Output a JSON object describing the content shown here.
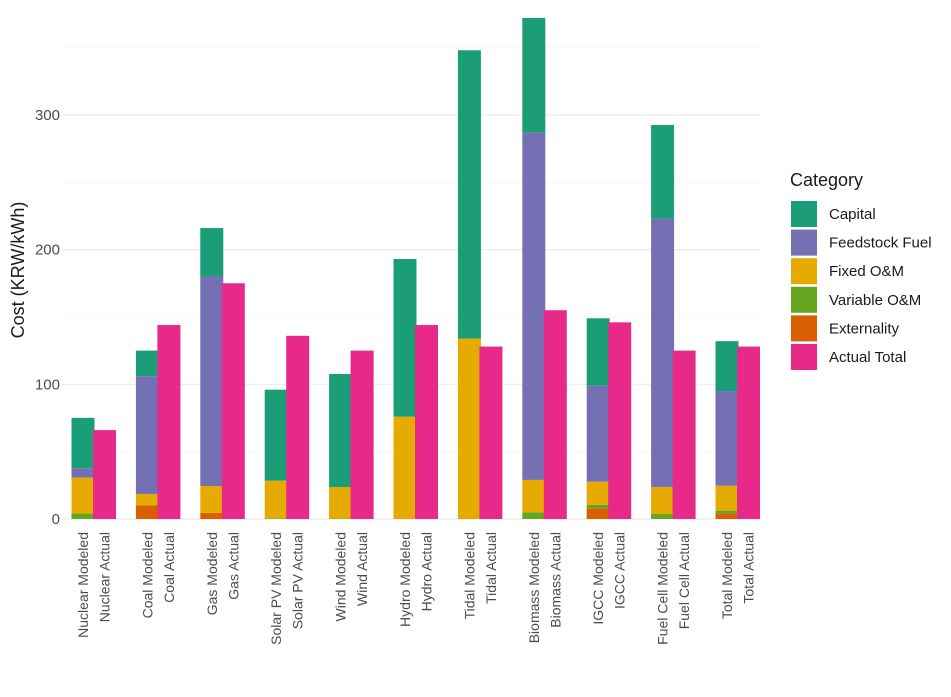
{
  "chart_data": {
    "type": "bar",
    "stacked": true,
    "title": "",
    "xlabel": "",
    "ylabel": "Cost (KRW/kWh)",
    "ylim": [
      0,
      375
    ],
    "yticks": [
      0,
      100,
      200,
      300
    ],
    "grid": true,
    "legend_title": "Category",
    "legend_position": "right",
    "categories": [
      "Nuclear Modeled",
      "Nuclear Actual",
      "Coal Modeled",
      "Coal Actual",
      "Gas Modeled",
      "Gas Actual",
      "Solar PV Modeled",
      "Solar PV Actual",
      "Wind Modeled",
      "Wind Actual",
      "Hydro Modeled",
      "Hydro Actual",
      "Tidal Modeled",
      "Tidal Actual",
      "Biomass Modeled",
      "Biomass Actual",
      "IGCC Modeled",
      "IGCC Actual",
      "Fuel Cell Modeled",
      "Fuel Cell Actual",
      "Total Modeled",
      "Total Actual"
    ],
    "series": [
      {
        "name": "Externality",
        "color": "#d95f02",
        "values": [
          0,
          0,
          10,
          0,
          4.5,
          0,
          0,
          0,
          0,
          0,
          0,
          0,
          0,
          0,
          0,
          0,
          8,
          0,
          0,
          0,
          4,
          0
        ]
      },
      {
        "name": "Variable O&M",
        "color": "#66a61e",
        "values": [
          4.2,
          0,
          0,
          0,
          0,
          0,
          0.5,
          0,
          0.3,
          0,
          0,
          0,
          0,
          0,
          5,
          0,
          2.6,
          0,
          3.7,
          0,
          2.2,
          0
        ]
      },
      {
        "name": "Fixed O&M",
        "color": "#e6ab02",
        "values": [
          26.5,
          0,
          8.6,
          0,
          20,
          0,
          28,
          0,
          23.4,
          0,
          76,
          0,
          134,
          0,
          24,
          0,
          17.1,
          0,
          20.1,
          0,
          18.5,
          0
        ]
      },
      {
        "name": "Feedstock Fuel",
        "color": "#7570b3",
        "values": [
          7,
          0,
          87.4,
          0,
          155.5,
          0,
          0,
          0,
          0,
          0,
          0,
          0,
          0,
          0,
          258,
          0,
          71.3,
          0,
          199.2,
          0,
          70.3,
          0
        ]
      },
      {
        "name": "Capital",
        "color": "#1b9e77",
        "values": [
          37.4,
          0,
          19,
          0,
          36,
          0,
          67.5,
          0,
          84,
          0,
          117,
          0,
          214,
          0,
          85,
          0,
          50,
          0,
          69.5,
          0,
          37,
          0
        ]
      },
      {
        "name": "Actual Total",
        "color": "#e7298a",
        "values": [
          0,
          66,
          0,
          144,
          0,
          175,
          0,
          136,
          0,
          125,
          0,
          144,
          0,
          128,
          0,
          155,
          0,
          146,
          0,
          125,
          0,
          128
        ]
      }
    ],
    "legend_order": [
      "Capital",
      "Feedstock Fuel",
      "Fixed O&M",
      "Variable O&M",
      "Externality",
      "Actual Total"
    ]
  }
}
